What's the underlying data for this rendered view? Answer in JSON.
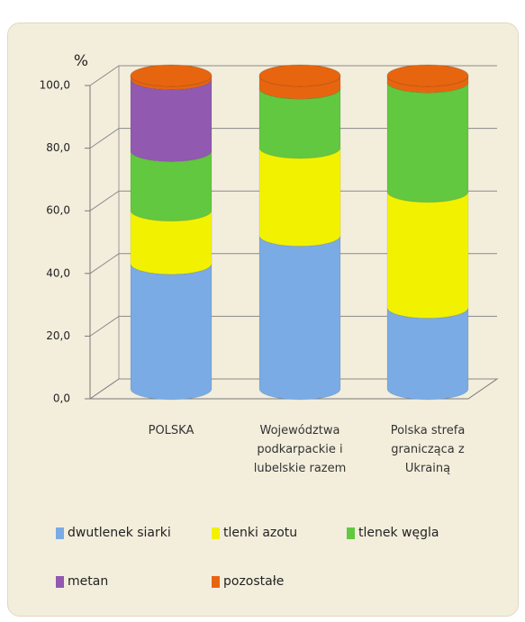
{
  "chart_data": {
    "type": "stacked-bar-3d-cylinder",
    "y_label": "%",
    "categories": [
      "POLSKA",
      "Województwa podkarpackie i lubelskie razem",
      "Polska strefa granicząca z Ukrainą"
    ],
    "series": [
      {
        "name": "dwutlenek siarki",
        "color": "#7aabe4",
        "values": [
          40,
          49,
          26
        ]
      },
      {
        "name": "tlenki azotu",
        "color": "#f2f200",
        "values": [
          17,
          28,
          37
        ]
      },
      {
        "name": "tlenek węgla",
        "color": "#62c83f",
        "values": [
          19,
          19,
          35
        ]
      },
      {
        "name": "metan",
        "color": "#9159b0",
        "values": [
          23,
          0,
          0
        ]
      },
      {
        "name": "pozostałe",
        "color": "#e8650f",
        "values": [
          1,
          4,
          2
        ]
      }
    ],
    "ylim": [
      0,
      100
    ],
    "yticks": [
      {
        "value": 0,
        "label": "0,0"
      },
      {
        "value": 20,
        "label": "20,0"
      },
      {
        "value": 40,
        "label": "40,0"
      },
      {
        "value": 60,
        "label": "60,0"
      },
      {
        "value": 80,
        "label": "80,0"
      },
      {
        "value": 100,
        "label": "100,0"
      }
    ],
    "grid": true
  }
}
